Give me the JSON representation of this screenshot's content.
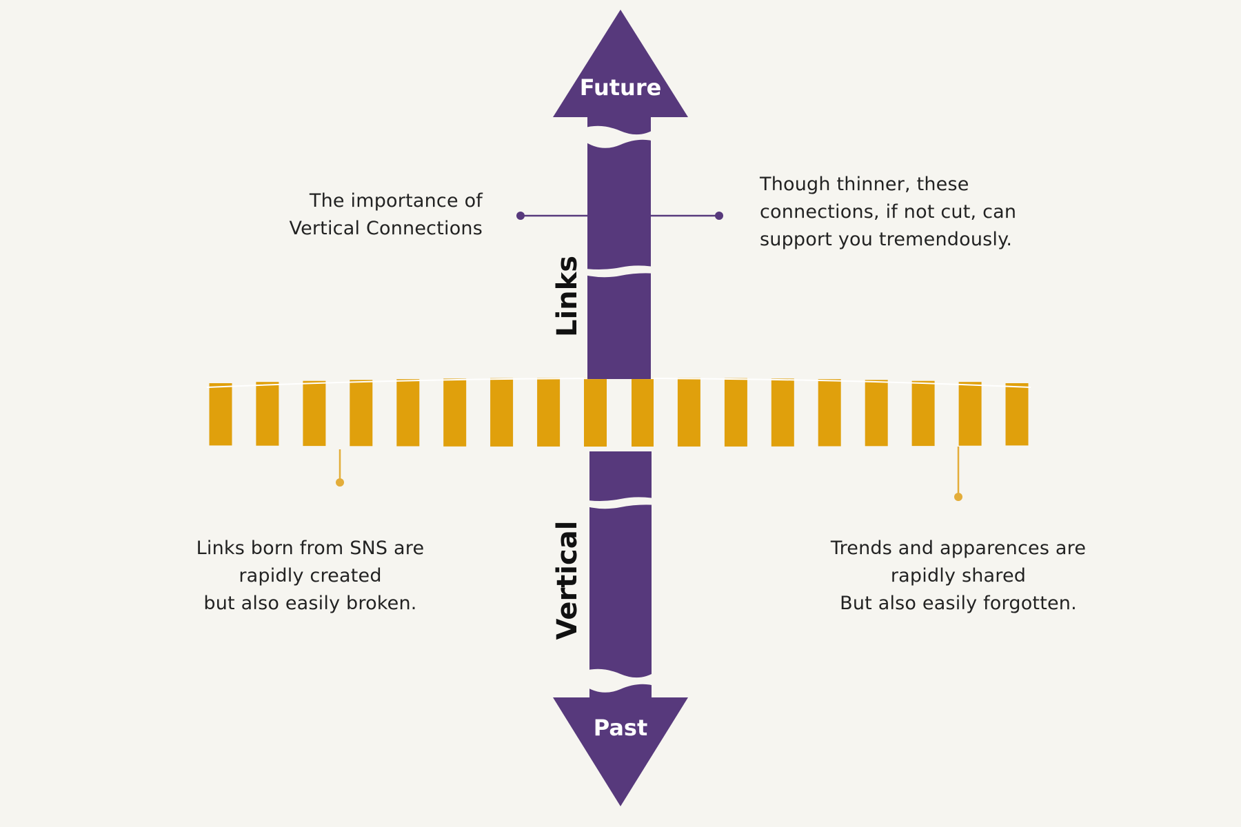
{
  "arrow": {
    "top_label": "Future",
    "bottom_label": "Past"
  },
  "axis_labels": {
    "upper": "Links",
    "lower": "Vertical"
  },
  "captions": {
    "vertical_importance": "The importance of\nVertical Connections",
    "thinner": "Though thinner, these\nconnections, if not cut, can\nsupport you tremendously.",
    "links_sns": "Links born from SNS are\nrapidly created\nbut also easily broken.",
    "trends": "Trends and apparences are\nrapidly shared\nBut also easily forgotten."
  },
  "colors": {
    "background": "#f6f5f0",
    "purple": "#57397c",
    "gold": "#e0a00c",
    "gold_line": "#e3ad3a",
    "text": "#222222"
  }
}
